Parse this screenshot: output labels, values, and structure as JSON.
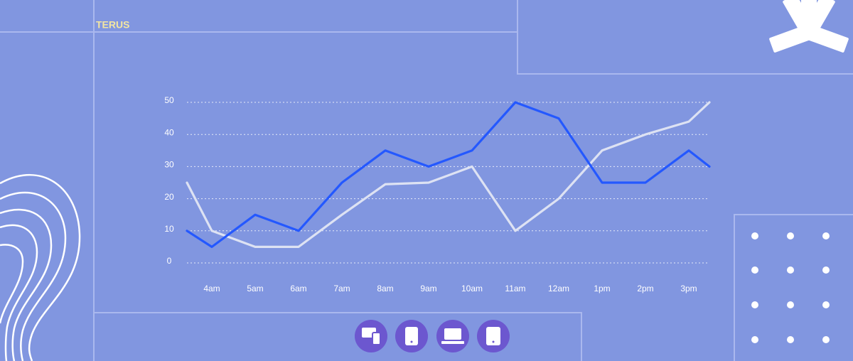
{
  "brand": "TERUS",
  "chart_data": {
    "type": "line",
    "categories": [
      null,
      "4am",
      "5am",
      "6am",
      "7am",
      "8am",
      "9am",
      "10am",
      "11am",
      "12am",
      "1pm",
      "2pm",
      "3pm",
      null
    ],
    "series": [
      {
        "color": "#dde2f3",
        "values": [
          25,
          10,
          5,
          5,
          15,
          24.5,
          25,
          30,
          10,
          20,
          35,
          40,
          44,
          50
        ]
      },
      {
        "color": "#2458ff",
        "values": [
          10,
          5,
          15,
          10,
          25,
          35,
          30,
          35,
          50,
          45,
          25,
          25,
          35,
          30
        ]
      }
    ],
    "ylim": [
      0,
      50
    ],
    "yticks": [
      0,
      10,
      20,
      30,
      40,
      50
    ],
    "grid": true
  }
}
